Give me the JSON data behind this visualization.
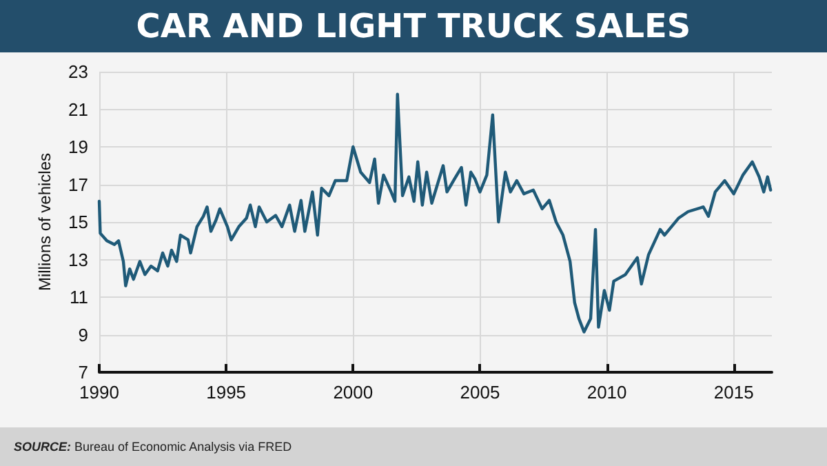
{
  "chart_data": {
    "type": "line",
    "title": "CAR AND LIGHT TRUCK SALES",
    "ylabel": "Millions of vehicles",
    "annotations": [
      "SOURCE: Bureau of Economic Analysis via FRED"
    ],
    "x": [
      1990.0,
      1990.04,
      1990.3,
      1990.6,
      1990.76,
      1990.95,
      1991.04,
      1991.2,
      1991.35,
      1991.6,
      1991.8,
      1992.04,
      1992.3,
      1992.5,
      1992.7,
      1992.85,
      1993.05,
      1993.2,
      1993.5,
      1993.6,
      1993.85,
      1994.1,
      1994.25,
      1994.4,
      1994.6,
      1994.75,
      1995.05,
      1995.2,
      1995.5,
      1995.8,
      1995.95,
      1996.15,
      1996.3,
      1996.6,
      1996.95,
      1997.2,
      1997.5,
      1997.7,
      1997.95,
      1998.1,
      1998.4,
      1998.6,
      1998.76,
      1999.05,
      1999.3,
      1999.75,
      2000.0,
      2000.3,
      2000.65,
      2000.85,
      2001.0,
      2001.2,
      2001.5,
      2001.65,
      2001.75,
      2001.95,
      2002.2,
      2002.4,
      2002.55,
      2002.73,
      2002.9,
      2003.1,
      2003.55,
      2003.7,
      2004.0,
      2004.27,
      2004.45,
      2004.64,
      2004.8,
      2005.0,
      2005.27,
      2005.5,
      2005.73,
      2006.0,
      2006.2,
      2006.45,
      2006.73,
      2007.1,
      2007.45,
      2007.73,
      2008.0,
      2008.27,
      2008.55,
      2008.73,
      2008.9,
      2009.1,
      2009.36,
      2009.55,
      2009.67,
      2009.9,
      2010.1,
      2010.27,
      2010.73,
      2011.2,
      2011.36,
      2011.64,
      2012.1,
      2012.27,
      2012.82,
      2013.2,
      2013.8,
      2014.0,
      2014.27,
      2014.64,
      2015.0,
      2015.36,
      2015.73,
      2016.0,
      2016.18,
      2016.33,
      2016.45
    ],
    "series": [
      {
        "color": "#1f5a78",
        "values": [
          16.1,
          14.4,
          14.0,
          13.8,
          14.0,
          12.9,
          11.6,
          12.5,
          11.95,
          12.9,
          12.2,
          12.65,
          12.4,
          13.35,
          12.65,
          13.5,
          12.9,
          14.3,
          14.05,
          13.35,
          14.75,
          15.3,
          15.8,
          14.5,
          15.1,
          15.7,
          14.75,
          14.05,
          14.75,
          15.2,
          15.9,
          14.75,
          15.8,
          15.0,
          15.35,
          14.75,
          15.9,
          14.5,
          16.15,
          14.5,
          16.6,
          14.3,
          16.8,
          16.4,
          17.2,
          17.2,
          19.0,
          17.65,
          17.1,
          18.35,
          16.0,
          17.5,
          16.6,
          16.1,
          21.8,
          16.4,
          17.4,
          16.1,
          18.2,
          15.9,
          17.65,
          16.0,
          18.0,
          16.6,
          17.3,
          17.9,
          15.9,
          17.65,
          17.3,
          16.6,
          17.5,
          20.7,
          15.0,
          17.65,
          16.6,
          17.2,
          16.5,
          16.7,
          15.7,
          16.15,
          15.0,
          14.3,
          12.9,
          10.7,
          9.85,
          9.15,
          9.85,
          14.6,
          9.4,
          11.35,
          10.3,
          11.85,
          12.2,
          13.1,
          11.7,
          13.25,
          14.6,
          14.3,
          15.2,
          15.55,
          15.8,
          15.3,
          16.6,
          17.2,
          16.5,
          17.5,
          18.2,
          17.4,
          16.6,
          17.4,
          16.7
        ]
      }
    ],
    "xlim": [
      1990,
      2016.5
    ],
    "xticks": [
      1990,
      1995,
      2000,
      2005,
      2010,
      2015
    ],
    "ylim": [
      7,
      23
    ],
    "yticks": [
      7,
      9,
      11,
      13,
      15,
      17,
      19,
      21,
      23
    ],
    "grid": true,
    "marker": "none",
    "line_style": "solid"
  }
}
